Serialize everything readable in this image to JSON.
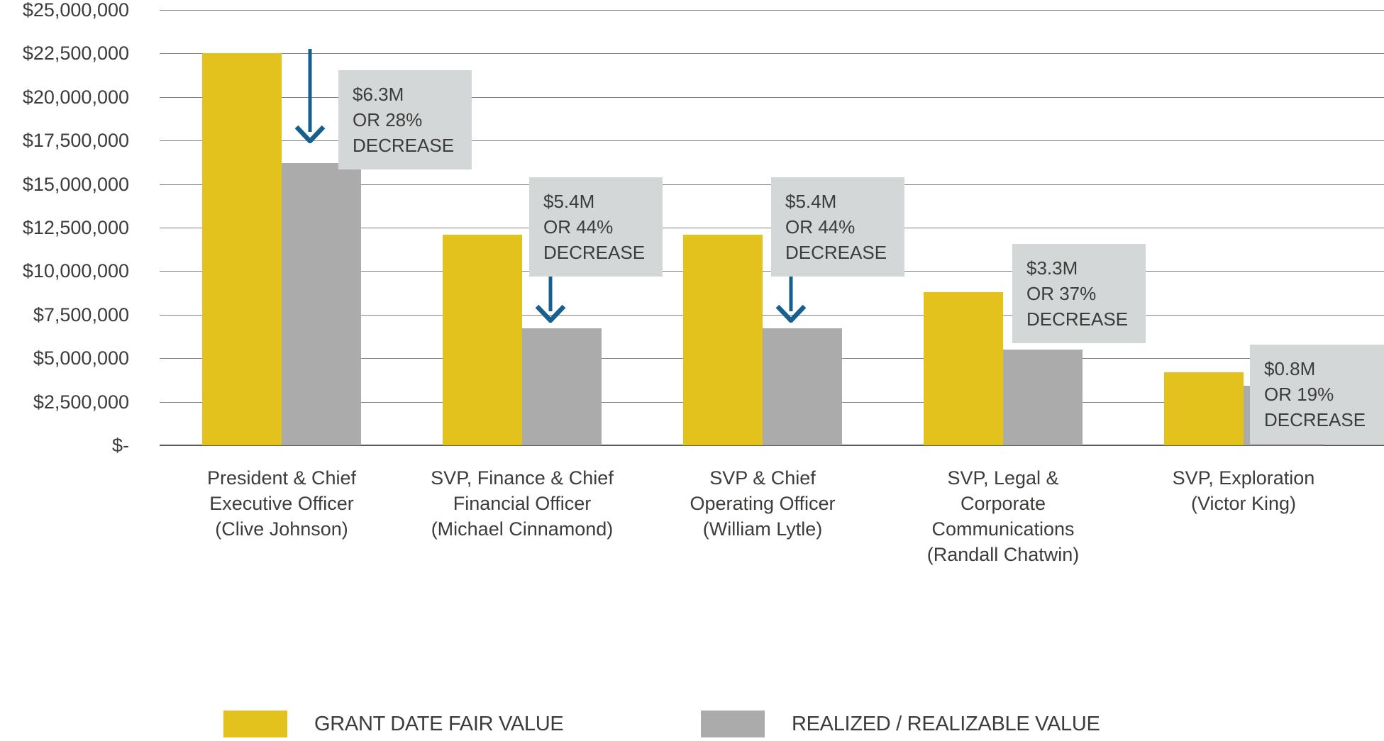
{
  "chart_data": {
    "type": "bar",
    "title": "",
    "xlabel": "",
    "ylabel": "",
    "ylim": [
      0,
      25000000
    ],
    "grid": "horizontal",
    "legend_position": "bottom",
    "y_ticks": [
      "$25,000,000",
      "$22,500,000",
      "$20,000,000",
      "$17,500,000",
      "$15,000,000",
      "$12,500,000",
      "$10,000,000",
      "$7,500,000",
      "$5,000,000",
      "$2,500,000",
      "$-"
    ],
    "categories": [
      [
        "President & Chief",
        "Executive Officer",
        "(Clive Johnson)"
      ],
      [
        "SVP, Finance & Chief",
        "Financial Officer",
        "(Michael Cinnamond)"
      ],
      [
        "SVP & Chief",
        "Operating Officer",
        "(William Lytle)"
      ],
      [
        "SVP, Legal &",
        "Corporate",
        "Communications",
        "(Randall Chatwin)"
      ],
      [
        "SVP, Exploration",
        "(Victor King)"
      ]
    ],
    "series": [
      {
        "name": "GRANT DATE FAIR VALUE",
        "color": "#E3C21E",
        "values": [
          22500000,
          12100000,
          12100000,
          8800000,
          4200000
        ]
      },
      {
        "name": "REALIZED / REALIZABLE VALUE",
        "color": "#ABABAC",
        "values": [
          16200000,
          6700000,
          6700000,
          5500000,
          3400000
        ]
      }
    ],
    "annotations": [
      [
        "$6.3M",
        "OR 28%",
        "DECREASE"
      ],
      [
        "$5.4M",
        "OR 44%",
        "DECREASE"
      ],
      [
        "$5.4M",
        "OR 44%",
        "DECREASE"
      ],
      [
        "$3.3M",
        "OR 37%",
        "DECREASE"
      ],
      [
        "$0.8M",
        "OR 19%",
        "DECREASE"
      ]
    ],
    "colors": {
      "grant_bar": "#E3C21E",
      "realized_bar": "#ABABAC",
      "annotation_box_bg": "#D4D7D7",
      "arrow": "#175F90",
      "gridline": "#828282",
      "axis_line": "#5a5a5a",
      "text": "#3C3C3B"
    }
  }
}
